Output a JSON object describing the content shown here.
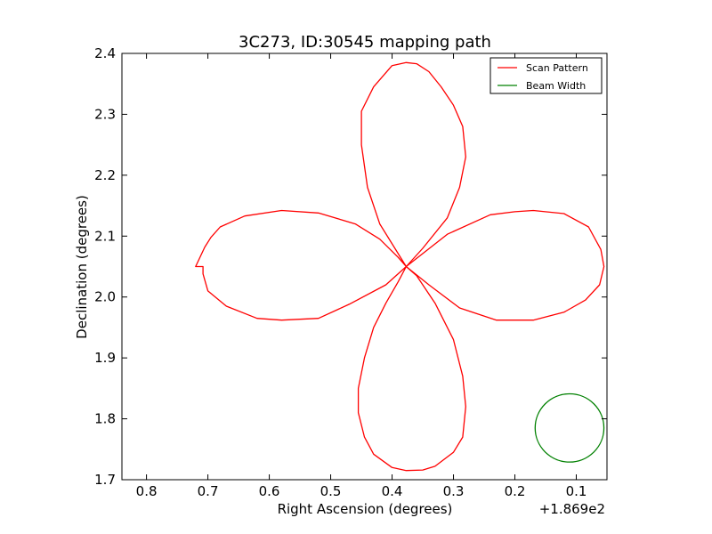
{
  "chart_data": {
    "type": "line",
    "title": "3C273, ID:30545 mapping path",
    "xlabel": "Right Ascension (degrees)",
    "ylabel": "Declination (degrees)",
    "x_offset_label": "+1.869e2",
    "xlim": [
      0.84,
      0.05
    ],
    "ylim": [
      1.7,
      2.4
    ],
    "x_ticks": [
      0.8,
      0.7,
      0.6,
      0.5,
      0.4,
      0.3,
      0.2,
      0.1
    ],
    "x_tick_labels": [
      "0.8",
      "0.7",
      "0.6",
      "0.5",
      "0.4",
      "0.3",
      "0.2",
      "0.1"
    ],
    "y_ticks": [
      1.7,
      1.8,
      1.9,
      2.0,
      2.1,
      2.2,
      2.3,
      2.4
    ],
    "y_tick_labels": [
      "1.7",
      "1.8",
      "1.9",
      "2.0",
      "2.1",
      "2.2",
      "2.3",
      "2.4"
    ],
    "grid": false,
    "legend_position": "top-right",
    "series": [
      {
        "name": "Scan Pattern",
        "color": "#ff0000",
        "x": [
          0.377,
          0.39,
          0.42,
          0.46,
          0.52,
          0.58,
          0.64,
          0.68,
          0.695,
          0.705,
          0.72,
          0.708,
          0.708,
          0.7,
          0.67,
          0.62,
          0.58,
          0.52,
          0.47,
          0.41,
          0.377,
          0.36,
          0.33,
          0.3,
          0.285,
          0.28,
          0.285,
          0.3,
          0.33,
          0.35,
          0.377,
          0.4,
          0.43,
          0.445,
          0.455,
          0.455,
          0.445,
          0.43,
          0.41,
          0.39,
          0.377,
          0.34,
          0.29,
          0.23,
          0.17,
          0.12,
          0.085,
          0.062,
          0.055,
          0.06,
          0.08,
          0.12,
          0.17,
          0.2,
          0.24,
          0.31,
          0.377,
          0.42,
          0.44,
          0.45,
          0.45,
          0.43,
          0.4,
          0.377,
          0.36,
          0.34,
          0.32,
          0.3,
          0.285,
          0.28,
          0.29,
          0.31,
          0.35,
          0.377
        ],
        "y": [
          2.05,
          2.065,
          2.095,
          2.12,
          2.138,
          2.142,
          2.133,
          2.115,
          2.098,
          2.082,
          2.05,
          2.05,
          2.038,
          2.01,
          1.985,
          1.965,
          1.962,
          1.965,
          1.988,
          2.02,
          2.05,
          2.035,
          1.99,
          1.93,
          1.87,
          1.82,
          1.77,
          1.745,
          1.722,
          1.716,
          1.715,
          1.72,
          1.742,
          1.77,
          1.81,
          1.85,
          1.9,
          1.95,
          1.99,
          2.025,
          2.05,
          2.02,
          1.982,
          1.962,
          1.962,
          1.975,
          1.995,
          2.02,
          2.05,
          2.078,
          2.115,
          2.137,
          2.142,
          2.14,
          2.135,
          2.103,
          2.05,
          2.12,
          2.18,
          2.25,
          2.305,
          2.345,
          2.38,
          2.385,
          2.383,
          2.37,
          2.345,
          2.315,
          2.28,
          2.23,
          2.18,
          2.13,
          2.08,
          2.05
        ]
      },
      {
        "name": "Beam Width",
        "color": "#008000",
        "shape": "circle",
        "center": [
          0.111,
          1.785
        ],
        "radius_deg": 0.056
      }
    ]
  }
}
